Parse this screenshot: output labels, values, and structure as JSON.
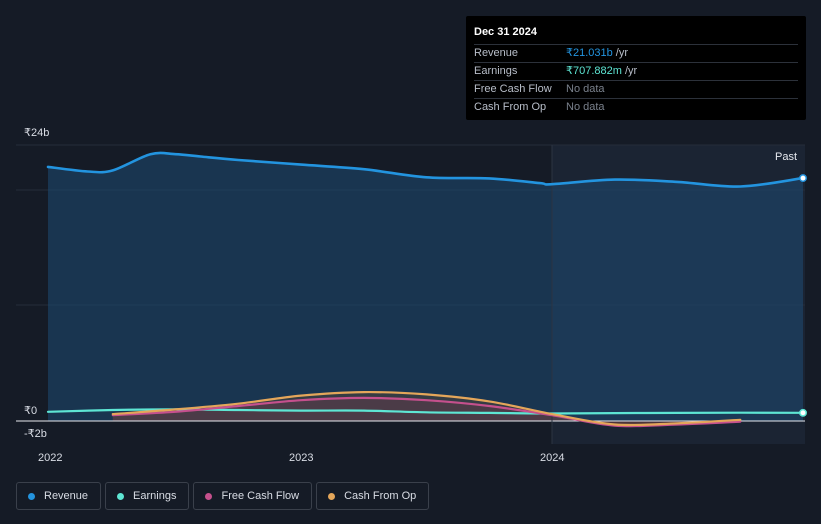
{
  "tooltip": {
    "date": "Dec 31 2024",
    "rows": [
      {
        "label": "Revenue",
        "value": "₹21.031b",
        "unit": "/yr"
      },
      {
        "label": "Earnings",
        "value": "₹707.882m",
        "unit": "/yr"
      },
      {
        "label": "Free Cash Flow",
        "value": "No data",
        "unit": ""
      },
      {
        "label": "Cash From Op",
        "value": "No data",
        "unit": ""
      }
    ]
  },
  "past_label": "Past",
  "legend": [
    {
      "label": "Revenue",
      "color": "#2394df"
    },
    {
      "label": "Earnings",
      "color": "#5ee6d4"
    },
    {
      "label": "Free Cash Flow",
      "color": "#c5508d"
    },
    {
      "label": "Cash From Op",
      "color": "#e4a65a"
    }
  ],
  "chart_data": {
    "type": "line",
    "y_tick_labels": [
      "₹24b",
      "₹0",
      "-₹2b"
    ],
    "y_ticks": [
      24,
      0,
      -2
    ],
    "x_tick_labels": [
      "2022",
      "2023",
      "2024"
    ],
    "x_ticks": [
      2022,
      2023,
      2024
    ],
    "xlim": [
      2021.9,
      2025.0
    ],
    "ylim": [
      -2.0,
      24.0
    ],
    "units": "₹ billions",
    "grid": true,
    "series": [
      {
        "name": "Revenue",
        "color": "#2394df",
        "x": [
          2021.9,
          2022.15,
          2022.25,
          2022.4,
          2022.5,
          2022.6,
          2022.75,
          2023.0,
          2023.25,
          2023.5,
          2023.75,
          2023.95,
          2024.0,
          2024.25,
          2024.5,
          2024.75,
          2025.0
        ],
        "y": [
          22.0,
          21.6,
          21.7,
          23.1,
          23.1,
          22.9,
          22.6,
          22.2,
          21.8,
          21.1,
          21.0,
          20.6,
          20.5,
          20.9,
          20.7,
          20.3,
          21.03
        ]
      },
      {
        "name": "Earnings",
        "color": "#5ee6d4",
        "x": [
          2021.9,
          2022.25,
          2022.5,
          2022.75,
          2023.0,
          2023.25,
          2023.5,
          2023.75,
          2024.0,
          2024.25,
          2024.5,
          2024.75,
          2025.0
        ],
        "y": [
          0.8,
          0.95,
          1.0,
          0.95,
          0.9,
          0.9,
          0.75,
          0.7,
          0.65,
          0.68,
          0.7,
          0.72,
          0.708
        ]
      },
      {
        "name": "Free Cash Flow",
        "color": "#c5508d",
        "x": [
          2022.25,
          2022.5,
          2022.75,
          2023.0,
          2023.25,
          2023.5,
          2023.75,
          2024.0,
          2024.25,
          2024.5,
          2024.75
        ],
        "y": [
          0.5,
          0.8,
          1.3,
          1.8,
          2.0,
          1.8,
          1.3,
          0.5,
          -0.4,
          -0.3,
          -0.05
        ]
      },
      {
        "name": "Cash From Op",
        "color": "#e4a65a",
        "x": [
          2022.25,
          2022.5,
          2022.75,
          2023.0,
          2023.25,
          2023.5,
          2023.75,
          2024.0,
          2024.25,
          2024.5,
          2024.75
        ],
        "y": [
          0.6,
          1.0,
          1.5,
          2.2,
          2.5,
          2.3,
          1.7,
          0.6,
          -0.3,
          -0.2,
          0.1
        ]
      }
    ]
  }
}
